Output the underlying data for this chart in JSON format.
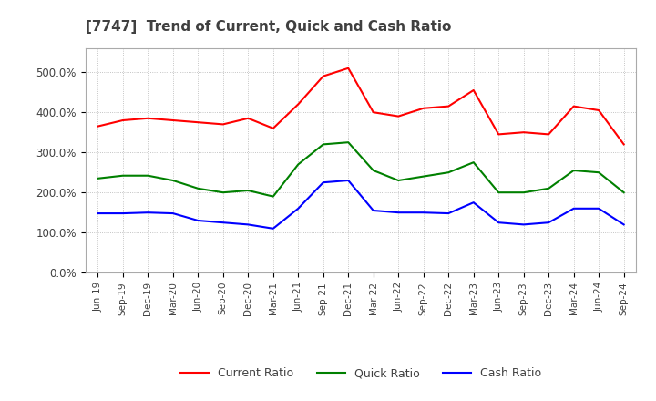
{
  "title": "[7747]  Trend of Current, Quick and Cash Ratio",
  "x_labels": [
    "Jun-19",
    "Sep-19",
    "Dec-19",
    "Mar-20",
    "Jun-20",
    "Sep-20",
    "Dec-20",
    "Mar-21",
    "Jun-21",
    "Sep-21",
    "Dec-21",
    "Mar-22",
    "Jun-22",
    "Sep-22",
    "Dec-22",
    "Mar-23",
    "Jun-23",
    "Sep-23",
    "Dec-23",
    "Mar-24",
    "Jun-24",
    "Sep-24"
  ],
  "current_ratio": [
    365,
    380,
    385,
    380,
    375,
    370,
    385,
    360,
    420,
    490,
    510,
    400,
    390,
    410,
    415,
    455,
    345,
    350,
    345,
    415,
    405,
    320
  ],
  "quick_ratio": [
    235,
    242,
    242,
    230,
    210,
    200,
    205,
    190,
    270,
    320,
    325,
    255,
    230,
    240,
    250,
    275,
    200,
    200,
    210,
    255,
    250,
    200
  ],
  "cash_ratio": [
    148,
    148,
    150,
    148,
    130,
    125,
    120,
    110,
    160,
    225,
    230,
    155,
    150,
    150,
    148,
    175,
    125,
    120,
    125,
    160,
    160,
    120
  ],
  "ylim": [
    0,
    560
  ],
  "yticks": [
    0,
    100,
    200,
    300,
    400,
    500
  ],
  "yticklabels": [
    "0.0%",
    "100.0%",
    "200.0%",
    "300.0%",
    "400.0%",
    "500.0%"
  ],
  "current_color": "#FF0000",
  "quick_color": "#008000",
  "cash_color": "#0000FF",
  "background_color": "#FFFFFF",
  "grid_color": "#AAAAAA",
  "title_color": "#404040",
  "legend_labels": [
    "Current Ratio",
    "Quick Ratio",
    "Cash Ratio"
  ]
}
